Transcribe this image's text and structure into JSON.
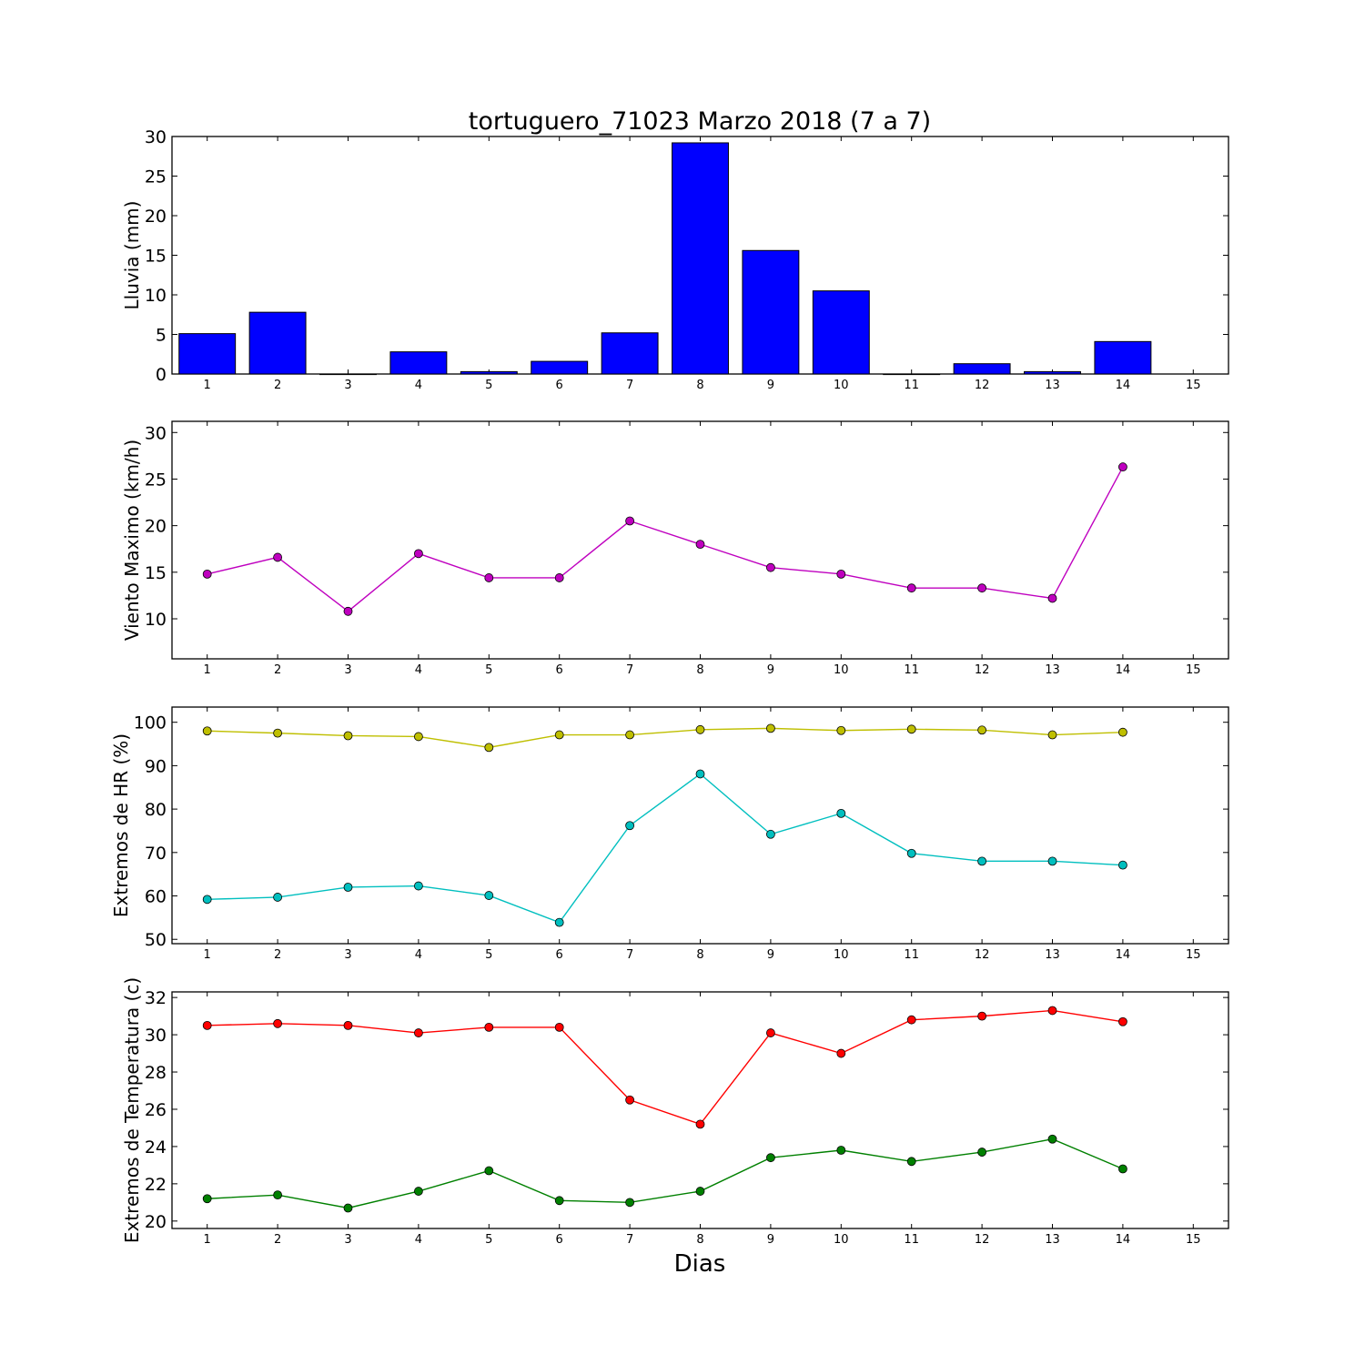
{
  "chart_data": [
    {
      "type": "bar",
      "title": "tortuguero_71023 Marzo 2018  (7 a 7)",
      "ylabel": "Lluvia (mm)",
      "x": [
        1,
        2,
        3,
        4,
        5,
        6,
        7,
        8,
        9,
        10,
        11,
        12,
        13,
        14
      ],
      "values": [
        5.1,
        7.8,
        0.0,
        2.8,
        0.3,
        1.6,
        5.2,
        29.2,
        15.6,
        10.5,
        0.0,
        1.3,
        0.3,
        4.1
      ],
      "xlim": [
        0.5,
        15.5
      ],
      "ylim": [
        0,
        30
      ],
      "xticks": [
        1,
        2,
        3,
        4,
        5,
        6,
        7,
        8,
        9,
        10,
        11,
        12,
        13,
        14,
        15
      ],
      "yticks": [
        0,
        5,
        10,
        15,
        20,
        25,
        30
      ],
      "color": "#0000ff"
    },
    {
      "type": "line",
      "ylabel": "Viento Maximo (km/h)",
      "x": [
        1,
        2,
        3,
        4,
        5,
        6,
        7,
        8,
        9,
        10,
        11,
        12,
        13,
        14
      ],
      "series": [
        {
          "values": [
            14.8,
            16.6,
            10.8,
            17.0,
            14.4,
            14.4,
            20.5,
            18.0,
            15.5,
            14.8,
            13.3,
            13.3,
            12.2,
            26.3
          ],
          "color": "#bf00bf"
        }
      ],
      "xlim": [
        0.5,
        15.5
      ],
      "ylim": [
        5.7,
        31.2
      ],
      "xticks": [
        1,
        2,
        3,
        4,
        5,
        6,
        7,
        8,
        9,
        10,
        11,
        12,
        13,
        14,
        15
      ],
      "yticks": [
        10,
        15,
        20,
        25,
        30
      ]
    },
    {
      "type": "line",
      "ylabel": "Extremos de HR (%)",
      "x": [
        1,
        2,
        3,
        4,
        5,
        6,
        7,
        8,
        9,
        10,
        11,
        12,
        13,
        14
      ],
      "series": [
        {
          "values": [
            98.0,
            97.5,
            96.9,
            96.7,
            94.2,
            97.1,
            97.1,
            98.3,
            98.6,
            98.1,
            98.4,
            98.2,
            97.1,
            97.7
          ],
          "color": "#bfbf00"
        },
        {
          "values": [
            59.2,
            59.7,
            62.0,
            62.3,
            60.1,
            53.9,
            76.2,
            88.1,
            74.2,
            79.0,
            69.8,
            68.0,
            68.0,
            67.1
          ],
          "color": "#00bfbf"
        }
      ],
      "xlim": [
        0.5,
        15.5
      ],
      "ylim": [
        49,
        103.5
      ],
      "xticks": [
        1,
        2,
        3,
        4,
        5,
        6,
        7,
        8,
        9,
        10,
        11,
        12,
        13,
        14,
        15
      ],
      "yticks": [
        50,
        60,
        70,
        80,
        90,
        100
      ]
    },
    {
      "type": "line",
      "ylabel": "Extremos de Temperatura (c)",
      "xlabel": "Dias",
      "x": [
        1,
        2,
        3,
        4,
        5,
        6,
        7,
        8,
        9,
        10,
        11,
        12,
        13,
        14
      ],
      "series": [
        {
          "values": [
            30.5,
            30.6,
            30.5,
            30.1,
            30.4,
            30.4,
            26.5,
            25.2,
            30.1,
            29.0,
            30.8,
            31.0,
            31.3,
            30.7
          ],
          "color": "#ff0000"
        },
        {
          "values": [
            21.2,
            21.4,
            20.7,
            21.6,
            22.7,
            21.1,
            21.0,
            21.6,
            23.4,
            23.8,
            23.2,
            23.7,
            24.4,
            22.8
          ],
          "color": "#008000"
        }
      ],
      "xlim": [
        0.5,
        15.5
      ],
      "ylim": [
        19.6,
        32.3
      ],
      "xticks": [
        1,
        2,
        3,
        4,
        5,
        6,
        7,
        8,
        9,
        10,
        11,
        12,
        13,
        14,
        15
      ],
      "yticks": [
        20,
        22,
        24,
        26,
        28,
        30,
        32
      ]
    }
  ]
}
